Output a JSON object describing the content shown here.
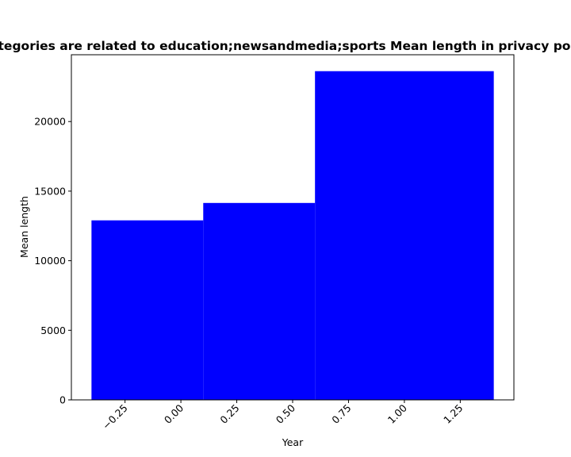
{
  "chart_data": {
    "type": "bar",
    "title": "Categories are related to education;newsandmedia;sports Mean length in privacy policies",
    "xlabel": "Year",
    "ylabel": "Mean length",
    "bar_color": "#0000ff",
    "bars": [
      {
        "x_start": -0.4,
        "x_end": 0.1,
        "value": 12900
      },
      {
        "x_start": 0.1,
        "x_end": 0.6,
        "value": 14150
      },
      {
        "x_start": 0.6,
        "x_end": 1.4,
        "value": 23620
      }
    ],
    "xlim": [
      -0.49,
      1.49
    ],
    "ylim": [
      0,
      24800
    ],
    "xticks": [
      {
        "value": -0.25,
        "label": "−0.25"
      },
      {
        "value": 0.0,
        "label": "0.00"
      },
      {
        "value": 0.25,
        "label": "0.25"
      },
      {
        "value": 0.5,
        "label": "0.50"
      },
      {
        "value": 0.75,
        "label": "0.75"
      },
      {
        "value": 1.0,
        "label": "1.00"
      },
      {
        "value": 1.25,
        "label": "1.25"
      }
    ],
    "yticks": [
      {
        "value": 0,
        "label": "0"
      },
      {
        "value": 5000,
        "label": "5000"
      },
      {
        "value": 10000,
        "label": "10000"
      },
      {
        "value": 15000,
        "label": "15000"
      },
      {
        "value": 20000,
        "label": "20000"
      }
    ],
    "grid": false,
    "legend": "none"
  }
}
